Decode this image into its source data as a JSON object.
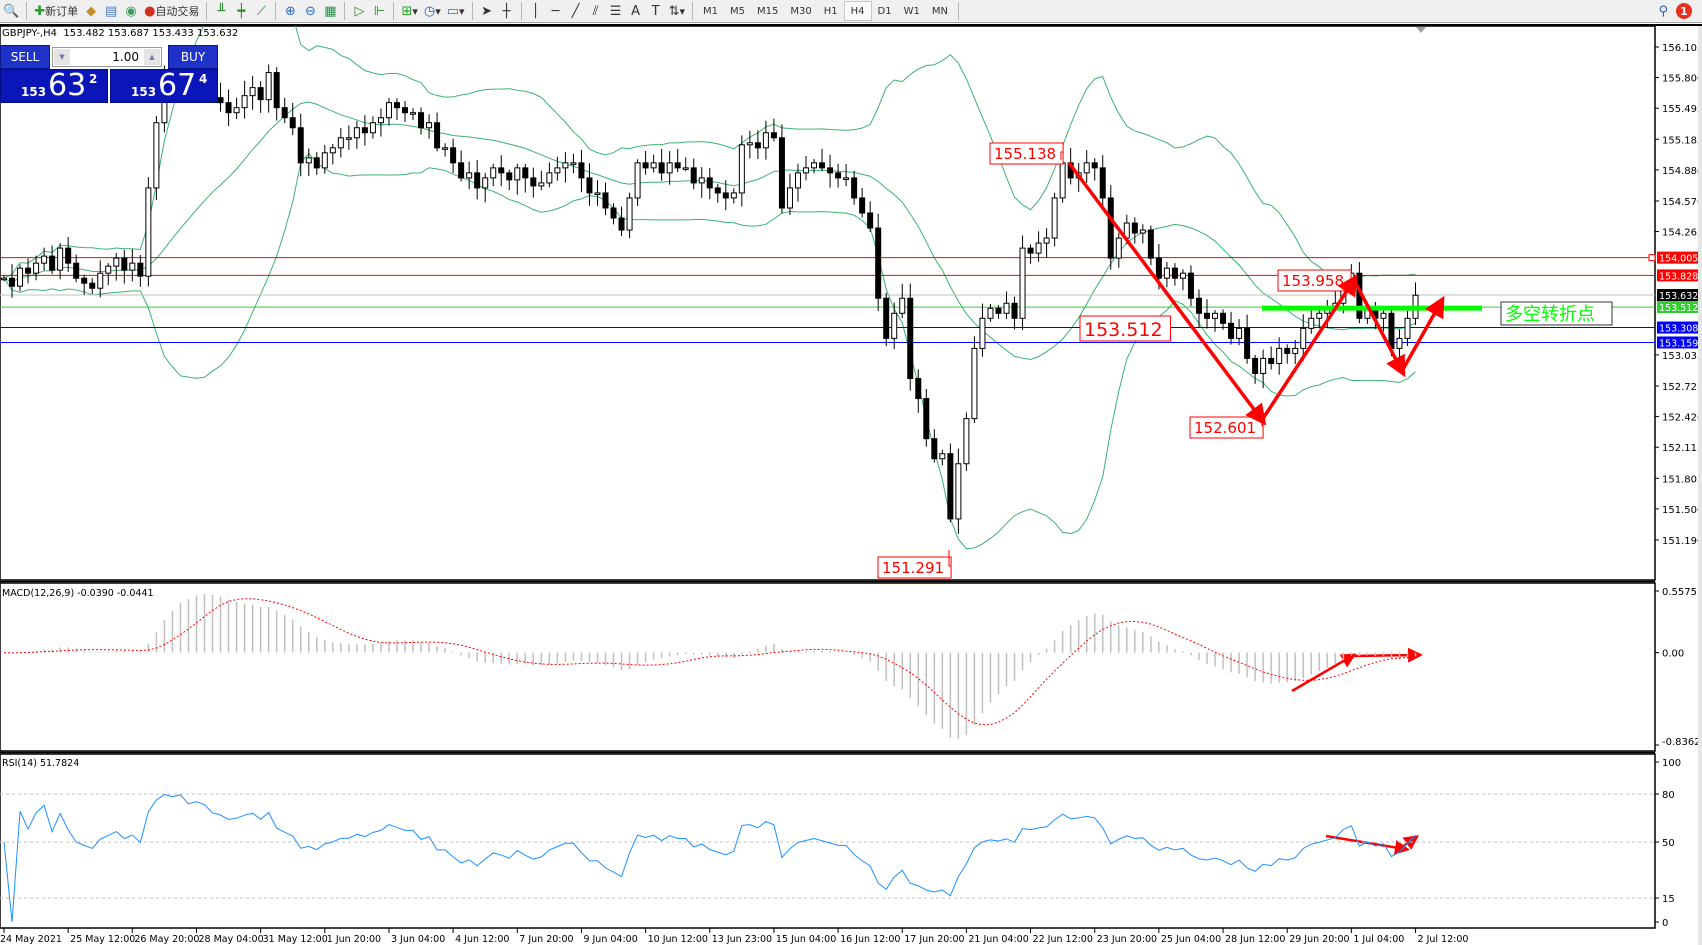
{
  "toolbar": {
    "new_order_label": "新订单",
    "auto_trading_label": "自动交易",
    "timeframes": [
      "M1",
      "M5",
      "M15",
      "M30",
      "H1",
      "H4",
      "D1",
      "W1",
      "MN"
    ],
    "active_timeframe": "H4",
    "notification_count": "1"
  },
  "chart_info": "GBPJPY-,H4  153.482 153.687 153.433 153.632",
  "one_click": {
    "sell_label": "SELL",
    "buy_label": "BUY",
    "lot_value": "1.00",
    "sell_big": "153",
    "sell_main": "63",
    "sell_pip": "2",
    "buy_big": "153",
    "buy_main": "67",
    "buy_pip": "4"
  },
  "chart_data": {
    "type": "candlestick",
    "symbol": "GBPJPY-",
    "timeframe": "H4",
    "price_ticks": [
      "156.105",
      "155.800",
      "155.495",
      "155.185",
      "154.880",
      "154.570",
      "154.265",
      "153.035",
      "152.725",
      "152.420",
      "152.115",
      "151.805",
      "151.500",
      "151.190"
    ],
    "ylim": [
      151.19,
      156.105
    ],
    "time_labels": [
      "24 May 2021",
      "25 May 12:00",
      "26 May 20:00",
      "28 May 04:00",
      "31 May 12:00",
      "1 Jun 20:00",
      "3 Jun 04:00",
      "4 Jun 12:00",
      "7 Jun 20:00",
      "9 Jun 04:00",
      "10 Jun 12:00",
      "13 Jun 23:00",
      "15 Jun 04:00",
      "16 Jun 12:00",
      "17 Jun 20:00",
      "21 Jun 04:00",
      "22 Jun 12:00",
      "23 Jun 20:00",
      "25 Jun 04:00",
      "28 Jun 12:00",
      "29 Jun 20:00",
      "1 Jul 04:00",
      "2 Jul 12:00"
    ],
    "closes": [
      153.8,
      153.72,
      153.9,
      153.85,
      153.95,
      154.02,
      153.88,
      154.1,
      153.95,
      153.8,
      153.75,
      153.7,
      153.85,
      153.92,
      154.0,
      153.88,
      153.95,
      153.82,
      154.7,
      155.35,
      155.8,
      155.75,
      155.9,
      155.7,
      155.85,
      155.78,
      155.6,
      155.55,
      155.45,
      155.5,
      155.62,
      155.7,
      155.58,
      155.85,
      155.5,
      155.4,
      155.3,
      154.95,
      155.0,
      154.9,
      155.05,
      155.1,
      155.2,
      155.2,
      155.3,
      155.25,
      155.35,
      155.4,
      155.55,
      155.5,
      155.45,
      155.45,
      155.3,
      155.35,
      155.1,
      155.1,
      154.95,
      154.8,
      154.85,
      154.7,
      154.8,
      154.9,
      154.85,
      154.78,
      154.9,
      154.8,
      154.72,
      154.75,
      154.85,
      154.9,
      154.95,
      154.95,
      154.8,
      154.65,
      154.65,
      154.5,
      154.4,
      154.28,
      154.6,
      154.95,
      154.9,
      154.95,
      154.85,
      154.95,
      154.9,
      154.9,
      154.75,
      154.8,
      154.7,
      154.65,
      154.6,
      154.65,
      155.13,
      155.15,
      155.1,
      155.25,
      155.2,
      154.5,
      154.7,
      154.85,
      154.9,
      154.95,
      154.9,
      154.85,
      154.8,
      154.8,
      154.6,
      154.45,
      154.3,
      153.6,
      153.2,
      153.45,
      153.6,
      152.8,
      152.6,
      152.2,
      152.0,
      152.05,
      151.4,
      151.95,
      152.4,
      153.1,
      153.4,
      153.5,
      153.45,
      153.55,
      153.4,
      154.1,
      154.05,
      154.15,
      154.2,
      154.6,
      154.95,
      154.8,
      154.85,
      154.95,
      154.9,
      154.6,
      154.0,
      154.2,
      154.35,
      154.25,
      154.28,
      154.0,
      153.8,
      153.9,
      153.8,
      153.85,
      153.6,
      153.45,
      153.4,
      153.45,
      153.35,
      153.2,
      153.3,
      153.0,
      152.85,
      153.0,
      152.95,
      153.1,
      153.05,
      153.1,
      153.3,
      153.4,
      153.45,
      153.5,
      153.55,
      153.75,
      153.85,
      153.4,
      153.5,
      153.4,
      153.45,
      153.1,
      153.2,
      153.4,
      153.63
    ],
    "indicators": {
      "bollinger": {
        "color": "#3cb371"
      },
      "macd": {
        "label": "MACD(12,26,9) -0.0390 -0.0441",
        "ticks": [
          "0.5575",
          "0.00",
          "-0.8362"
        ],
        "ylim": [
          -0.8362,
          0.5575
        ],
        "histogram_color": "#c0c0c0",
        "signal_color": "#ff0000"
      },
      "rsi": {
        "label": "RSI(14) 51.7824",
        "ticks": [
          "100",
          "80",
          "50",
          "15",
          "0"
        ],
        "levels": [
          80,
          50,
          15
        ],
        "color": "#1e90ff"
      }
    },
    "hlines": [
      {
        "price": 154.005,
        "label": "154.005",
        "color": "#ff0000"
      },
      {
        "price": 153.828,
        "label": "153.828",
        "color": "#ff0000"
      },
      {
        "price": 153.632,
        "label": "153.632",
        "color": "#c0c0c0",
        "tag_color": "#000000"
      },
      {
        "price": 153.512,
        "label": "153.512",
        "color": "#32cd32",
        "tag_color": "#32cd32"
      },
      {
        "price": 153.308,
        "label": "153.308",
        "color": "#0000ff"
      },
      {
        "price": 153.159,
        "label": "153.159",
        "color": "#0000ff"
      }
    ],
    "annotations": {
      "price_labels": [
        "155.138",
        "153.958",
        "153.512",
        "152.601",
        "151.291"
      ],
      "text_box": "多空转折点",
      "arrow_color": "#ff0000",
      "support_line_color": "#00ff00"
    }
  }
}
